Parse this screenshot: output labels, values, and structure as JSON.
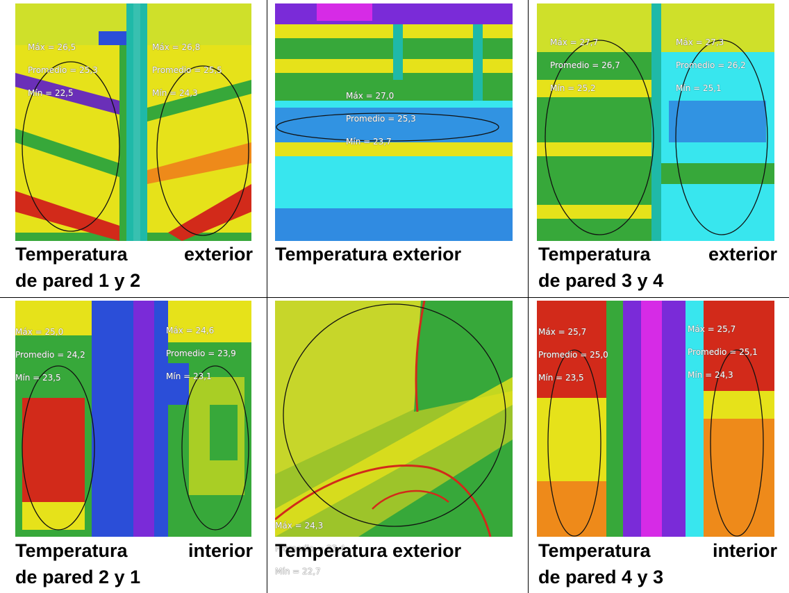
{
  "cells": [
    {
      "caption_line1_left": "Temperatura",
      "caption_line1_right": "exterior",
      "caption_line2": "de pared 1 y 2",
      "labels": [
        {
          "max": "Máx = 26,5",
          "avg": "Promedio = 25,3",
          "min": "Mín = 22,5"
        },
        {
          "max": "Máx = 26,8",
          "avg": "Promedio = 25,5",
          "min": "Mín = 24,3"
        }
      ]
    },
    {
      "caption_single": "Temperatura exterior",
      "labels": [
        {
          "max": "Máx = 27,0",
          "avg": "Promedio = 25,3",
          "min": "Mín = 23,7"
        }
      ]
    },
    {
      "caption_line1_left": "Temperatura",
      "caption_line1_right": "exterior",
      "caption_line2": "de pared 3 y 4",
      "labels": [
        {
          "max": "Máx = 27,7",
          "avg": "Promedio = 26,7",
          "min": "Mín = 25,2"
        },
        {
          "max": "Máx = 27,3",
          "avg": "Promedio = 26,2",
          "min": "Mín = 25,1"
        }
      ]
    },
    {
      "caption_line1_left": "Temperatura",
      "caption_line1_right": "interior",
      "caption_line2": "de pared 2 y 1",
      "labels": [
        {
          "max": "Máx = 25,0",
          "avg": "Promedio = 24,2",
          "min": "Mín = 23,5"
        },
        {
          "max": "Máx = 24,6",
          "avg": "Promedio = 23,9",
          "min": "Mín = 23,1"
        }
      ]
    },
    {
      "caption_single": "Temperatura exterior",
      "labels": [
        {
          "max": "Máx = 24,3",
          "avg": "Promedio = 23,4",
          "min": "Mín = 22,7"
        }
      ]
    },
    {
      "caption_line1_left": "Temperatura",
      "caption_line1_right": "interior",
      "caption_line2": "de pared 4 y 3",
      "labels": [
        {
          "max": "Máx = 25,7",
          "avg": "Promedio = 25,0",
          "min": "Mín = 23,5"
        },
        {
          "max": "Máx = 25,7",
          "avg": "Promedio = 25,1",
          "min": "Mín = 24,3"
        }
      ]
    }
  ],
  "palette": {
    "red": "#d22a1a",
    "orange": "#ee8a1a",
    "yellow": "#e6e21a",
    "green": "#37a83a",
    "teal": "#1fb9a8",
    "cyan": "#38e6ee",
    "blue": "#2b4ed8",
    "purple": "#7a2bd8",
    "magenta": "#d62be6"
  }
}
